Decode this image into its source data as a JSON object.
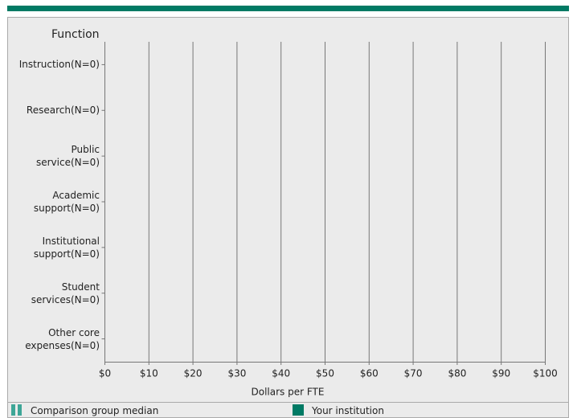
{
  "chart_data": {
    "type": "hbar",
    "y_axis_title": "Function",
    "x_axis_title": "Dollars per FTE",
    "categories": [
      "Instruction(N=0)",
      "Research(N=0)",
      "Public service(N=0)",
      "Academic support(N=0)",
      "Institutional support(N=0)",
      "Student services(N=0)",
      "Other core expenses(N=0)"
    ],
    "series": [
      {
        "name": "Comparison group median",
        "color": "#3ea697",
        "values": [
          null,
          null,
          null,
          null,
          null,
          null,
          null
        ]
      },
      {
        "name": "Your institution",
        "color": "#007a64",
        "values": [
          null,
          null,
          null,
          null,
          null,
          null,
          null
        ]
      }
    ],
    "xlim": [
      0,
      100
    ],
    "xticks": [
      {
        "value": 0,
        "label": "$0"
      },
      {
        "value": 10,
        "label": "$10"
      },
      {
        "value": 20,
        "label": "$20"
      },
      {
        "value": 30,
        "label": "$30"
      },
      {
        "value": 40,
        "label": "$40"
      },
      {
        "value": 50,
        "label": "$50"
      },
      {
        "value": 60,
        "label": "$60"
      },
      {
        "value": 70,
        "label": "$70"
      },
      {
        "value": 80,
        "label": "$80"
      },
      {
        "value": 90,
        "label": "$90"
      },
      {
        "value": 100,
        "label": "$100"
      }
    ],
    "grid": true
  }
}
